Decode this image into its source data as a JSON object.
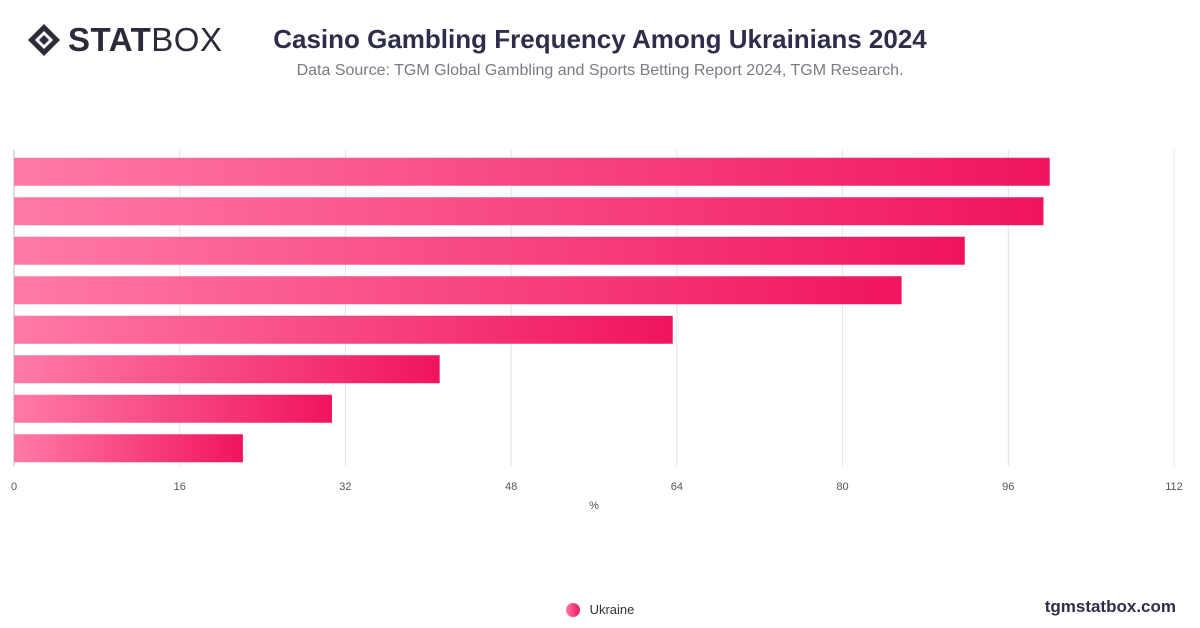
{
  "brand": {
    "name_bold": "STAT",
    "name_light": "BOX",
    "website": "tgmstatbox.com"
  },
  "colors": {
    "bar_start": "#ff7aa8",
    "bar_end": "#f0145f",
    "grid": "#e3e3e8",
    "text": "#2e2e4a"
  },
  "chart_data": {
    "type": "bar",
    "orientation": "horizontal",
    "title": "Casino Gambling Frequency Among Ukrainians 2024",
    "subtitle": "Data Source: TGM Global Gambling and Sports Betting Report 2024, TGM Research.",
    "xlabel": "%",
    "xlim": [
      0,
      112
    ],
    "xticks": [
      0,
      16,
      32,
      48,
      64,
      80,
      96,
      112
    ],
    "grid": true,
    "legend_position": "bottom",
    "series": [
      {
        "name": "Ukraine",
        "values": [
          100,
          99.4,
          91.8,
          85.7,
          63.6,
          41.1,
          30.7,
          22.1
        ]
      }
    ]
  }
}
